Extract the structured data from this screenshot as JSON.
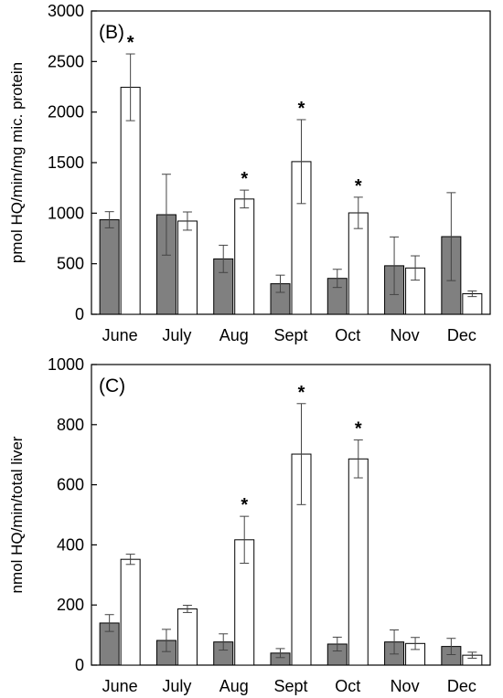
{
  "chart_data": [
    {
      "type": "bar",
      "panel_label": "(B)",
      "ylabel": "pmol HQ/min/mg mic. protein",
      "ylim": [
        0,
        3000
      ],
      "yticks": [
        0,
        500,
        1000,
        1500,
        2000,
        2500,
        3000
      ],
      "categories": [
        "June",
        "July",
        "Aug",
        "Sept",
        "Oct",
        "Nov",
        "Dec"
      ],
      "series": [
        {
          "fill": "#808080",
          "values": [
            935,
            985,
            548,
            302,
            355,
            480,
            768
          ],
          "errors": [
            80,
            400,
            135,
            85,
            90,
            285,
            435
          ]
        },
        {
          "fill": "#ffffff",
          "values": [
            2245,
            922,
            1140,
            1510,
            1003,
            458,
            203
          ],
          "errors": [
            330,
            90,
            88,
            415,
            155,
            120,
            28
          ]
        }
      ],
      "significant": [
        [
          false,
          false,
          false,
          false,
          false,
          false,
          false
        ],
        [
          true,
          false,
          true,
          true,
          true,
          false,
          false
        ]
      ],
      "star_symbol": "*"
    },
    {
      "type": "bar",
      "panel_label": "(C)",
      "ylabel": "nmol HQ/min/total liver",
      "ylim": [
        0,
        1000
      ],
      "yticks": [
        0,
        200,
        400,
        600,
        800,
        1000
      ],
      "categories": [
        "June",
        "July",
        "Aug",
        "Sept",
        "Oct",
        "Nov",
        "Dec"
      ],
      "series": [
        {
          "fill": "#808080",
          "values": [
            140,
            82,
            77,
            40,
            70,
            77,
            62
          ],
          "errors": [
            28,
            37,
            27,
            15,
            23,
            40,
            27
          ]
        },
        {
          "fill": "#ffffff",
          "values": [
            352,
            187,
            417,
            702,
            686,
            72,
            33
          ],
          "errors": [
            17,
            12,
            78,
            168,
            63,
            20,
            10
          ]
        }
      ],
      "significant": [
        [
          false,
          false,
          false,
          false,
          false,
          false,
          false
        ],
        [
          false,
          false,
          true,
          true,
          true,
          false,
          false
        ]
      ],
      "star_symbol": "*"
    }
  ]
}
